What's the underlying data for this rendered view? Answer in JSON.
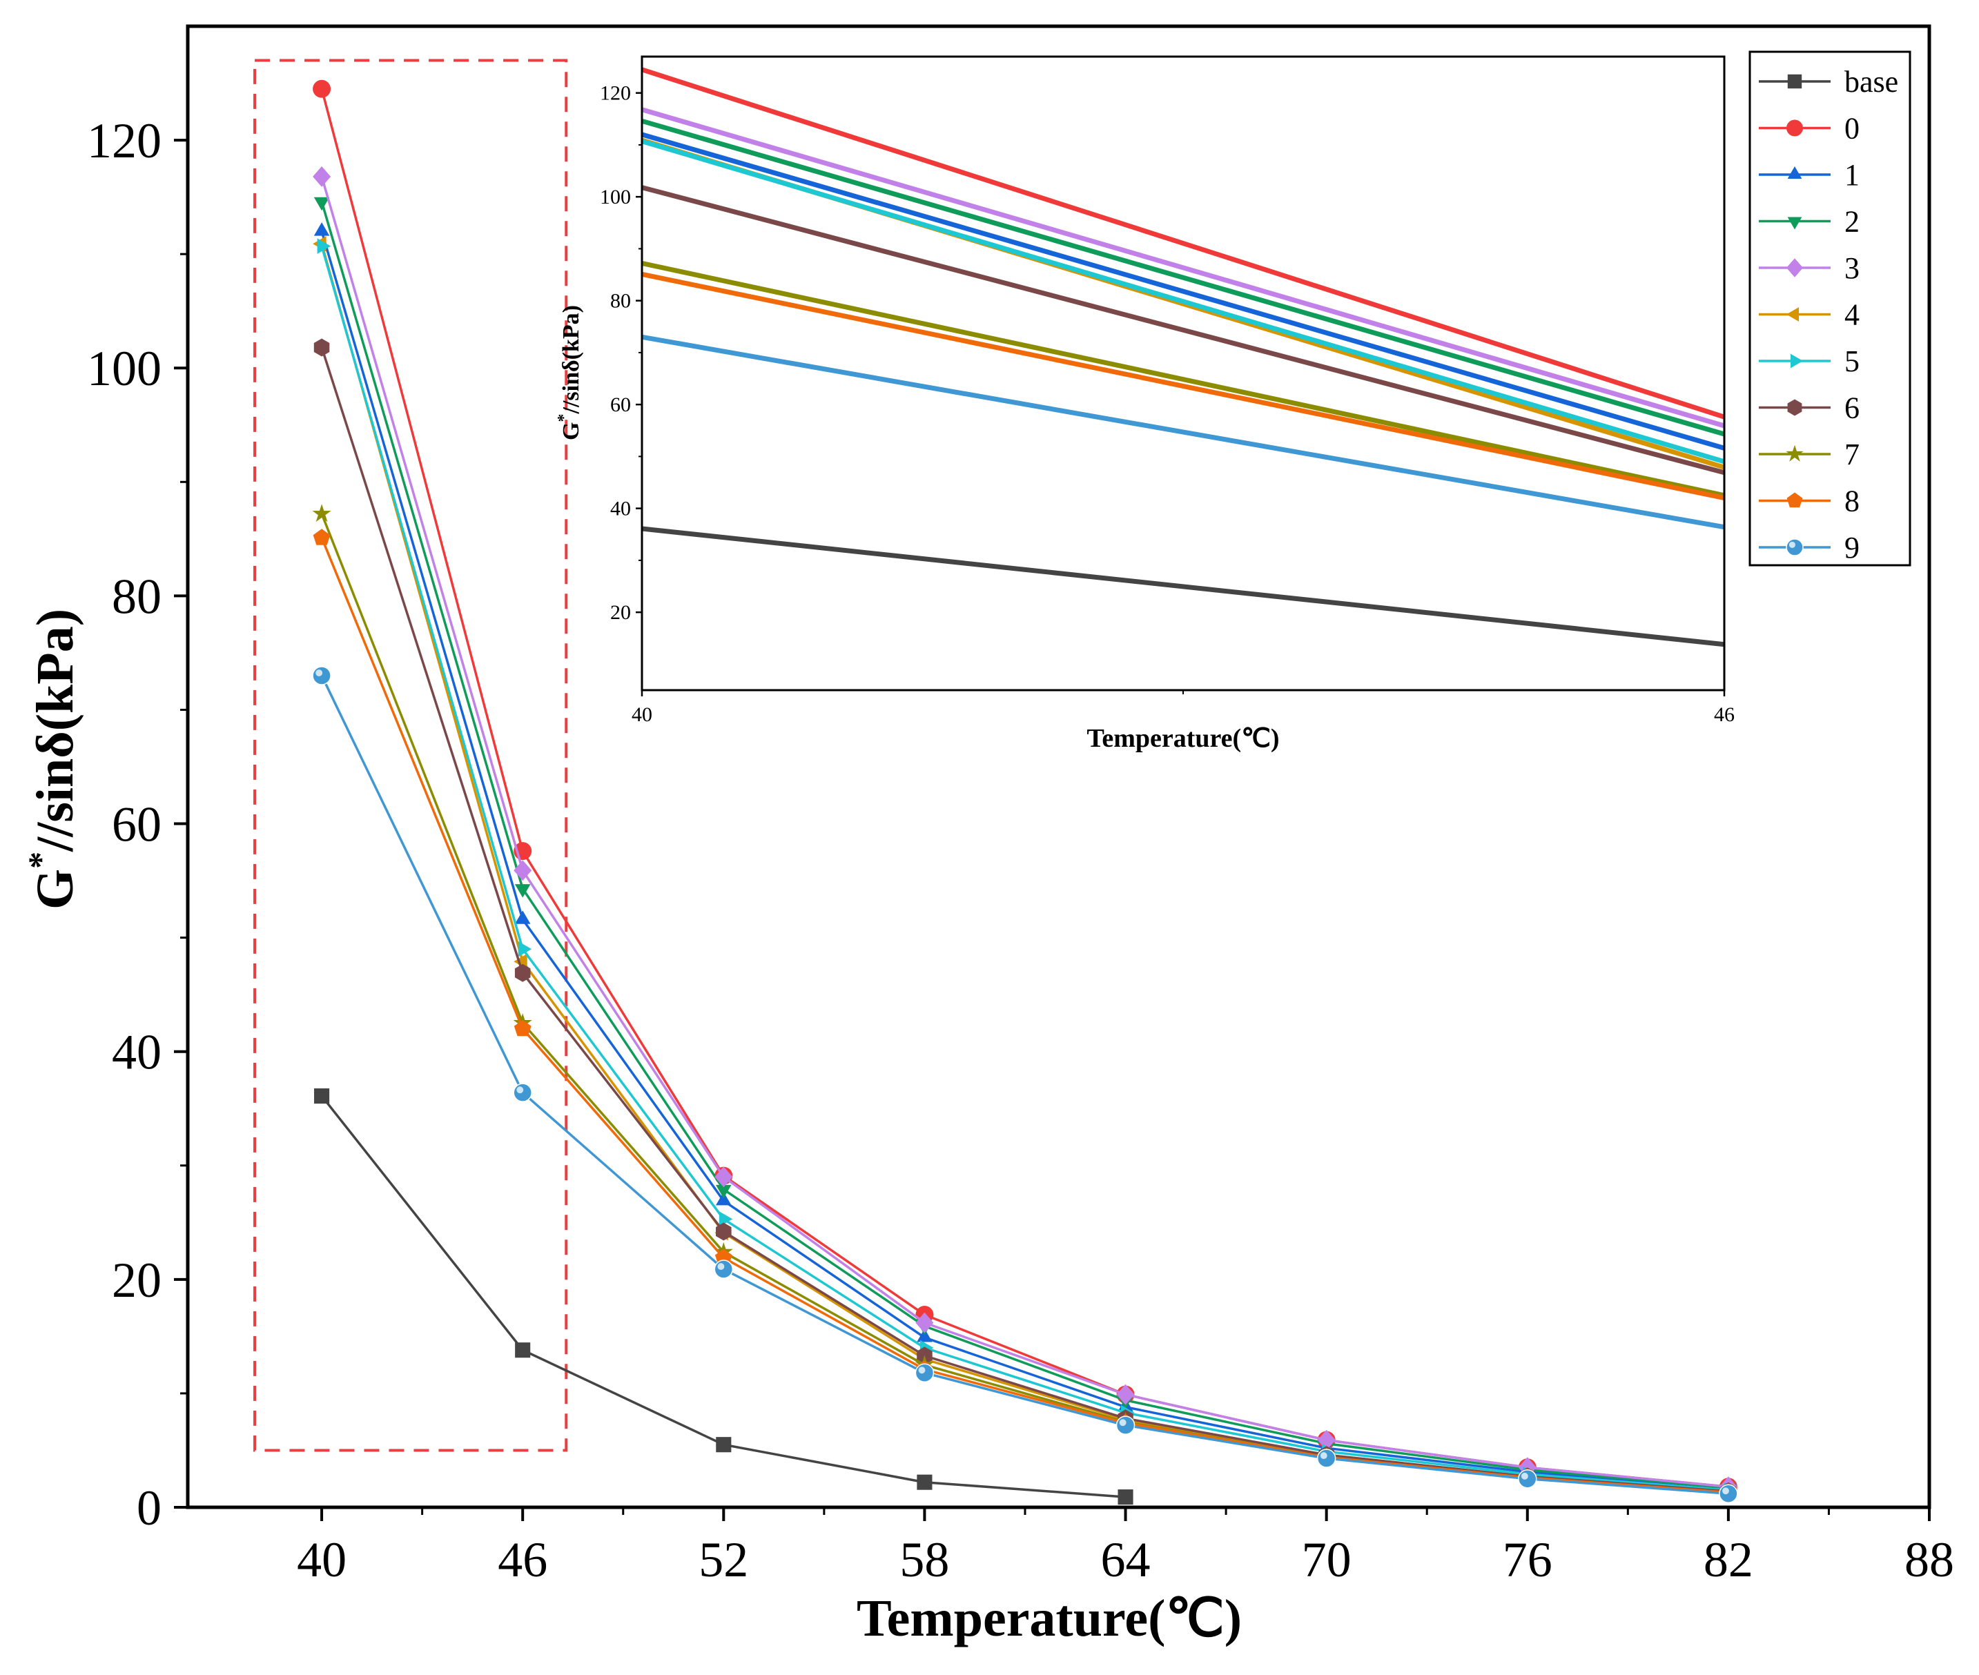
{
  "colors": {
    "base": "#444444",
    "0": "#f03a3a",
    "1": "#1565d8",
    "2": "#0f9b5a",
    "3": "#c281e8",
    "4": "#d69400",
    "5": "#1ec8d2",
    "6": "#7a4848",
    "7": "#8c8c00",
    "8": "#f06a0a",
    "9": "#3f97d4",
    "zoom_box": "#e84040"
  },
  "chart_data": [
    {
      "name": "main",
      "type": "line",
      "xlabel": "Temperature(℃)",
      "ylabel_main": "G",
      "ylabel_sup": "*",
      "ylabel_rest": "//sinδ(kPa)",
      "xlim": [
        36,
        88
      ],
      "ylim": [
        0,
        130
      ],
      "xticks": [
        40,
        46,
        52,
        58,
        64,
        70,
        76,
        82,
        88
      ],
      "xtick_labels": [
        "40",
        "46",
        "52",
        "58",
        "64",
        "70",
        "76",
        "82",
        "88"
      ],
      "yticks": [
        0,
        20,
        40,
        60,
        80,
        100,
        120
      ],
      "ytick_labels": [
        "0",
        "20",
        "40",
        "60",
        "80",
        "100",
        "120"
      ],
      "legend_position": "top-right",
      "annotation": "dashed red box highlighting the 40–46 ℃ region",
      "zoom_box": {
        "x": [
          38,
          47.3
        ],
        "y": [
          5,
          127
        ]
      },
      "series": [
        {
          "name": "base",
          "marker": "square",
          "x": [
            40,
            46,
            52,
            58,
            64
          ],
          "values": [
            36.1,
            13.8,
            5.5,
            2.2,
            0.9
          ]
        },
        {
          "name": "0",
          "marker": "circle",
          "x": [
            40,
            46,
            52,
            58,
            64,
            70,
            76,
            82
          ],
          "values": [
            124.5,
            57.6,
            29.1,
            16.9,
            9.9,
            5.9,
            3.5,
            1.8
          ]
        },
        {
          "name": "1",
          "marker": "tri-up",
          "x": [
            40,
            46,
            52,
            58,
            64,
            70,
            76,
            82
          ],
          "values": [
            112.0,
            51.6,
            26.9,
            14.9,
            8.8,
            5.2,
            3.1,
            1.5
          ]
        },
        {
          "name": "2",
          "marker": "tri-down",
          "x": [
            40,
            46,
            52,
            58,
            64,
            70,
            76,
            82
          ],
          "values": [
            114.6,
            54.3,
            27.9,
            15.9,
            9.4,
            5.6,
            3.3,
            1.7
          ]
        },
        {
          "name": "3",
          "marker": "diamond",
          "x": [
            40,
            46,
            52,
            58,
            64,
            70,
            76,
            82
          ],
          "values": [
            116.8,
            55.9,
            29.0,
            16.2,
            9.9,
            5.9,
            3.5,
            1.8
          ]
        },
        {
          "name": "4",
          "marker": "tri-left",
          "x": [
            40,
            46,
            52,
            58,
            64,
            70,
            76,
            82
          ],
          "values": [
            110.9,
            47.9,
            24.1,
            13.0,
            7.7,
            4.6,
            2.7,
            1.4
          ]
        },
        {
          "name": "5",
          "marker": "tri-right",
          "x": [
            40,
            46,
            52,
            58,
            64,
            70,
            76,
            82
          ],
          "values": [
            110.7,
            49.0,
            25.3,
            14.0,
            8.3,
            4.9,
            2.9,
            1.5
          ]
        },
        {
          "name": "6",
          "marker": "hexagon",
          "x": [
            40,
            46,
            52,
            58,
            64,
            70,
            76,
            82
          ],
          "values": [
            101.8,
            46.9,
            24.2,
            13.3,
            7.8,
            4.6,
            2.7,
            1.4
          ]
        },
        {
          "name": "7",
          "marker": "star",
          "x": [
            40,
            46,
            52,
            58,
            64,
            70,
            76,
            82
          ],
          "values": [
            87.2,
            42.5,
            22.4,
            12.5,
            7.5,
            4.4,
            2.6,
            1.3
          ]
        },
        {
          "name": "8",
          "marker": "pentagon",
          "x": [
            40,
            46,
            52,
            58,
            64,
            70,
            76,
            82
          ],
          "values": [
            85.1,
            42.0,
            21.9,
            12.1,
            7.4,
            4.4,
            2.6,
            1.3
          ]
        },
        {
          "name": "9",
          "marker": "sphere",
          "x": [
            40,
            46,
            52,
            58,
            64,
            70,
            76,
            82
          ],
          "values": [
            73.0,
            36.4,
            20.9,
            11.8,
            7.2,
            4.3,
            2.5,
            1.2
          ]
        }
      ]
    },
    {
      "name": "inset",
      "type": "line",
      "xlabel": "Temperature(℃)",
      "ylabel_main": "G",
      "ylabel_sup": "*",
      "ylabel_rest": "//sinδ(kPa)",
      "xlim": [
        40,
        46
      ],
      "ylim": [
        5,
        127
      ],
      "xticks": [
        40,
        46
      ],
      "xtick_labels": [
        "40",
        "46"
      ],
      "yticks": [
        20,
        40,
        60,
        80,
        100,
        120
      ],
      "ytick_labels": [
        "20",
        "40",
        "60",
        "80",
        "100",
        "120"
      ],
      "series_ref": "main series, restricted to x in [40, 46], drawn without markers"
    }
  ]
}
